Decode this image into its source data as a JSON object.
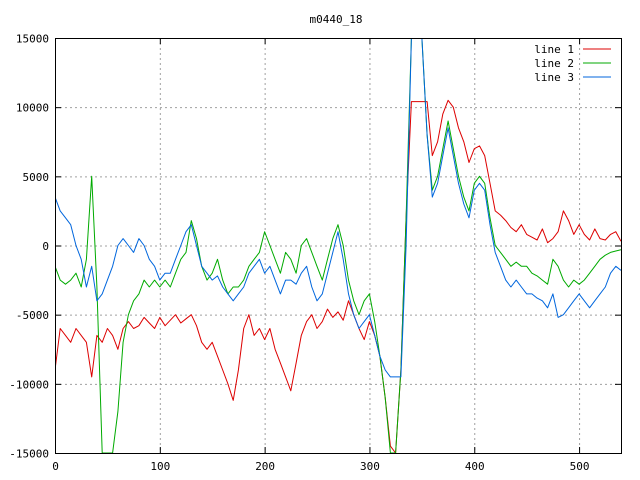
{
  "chart_data": {
    "type": "line",
    "title": "m0440_18",
    "xlabel": "",
    "ylabel": "",
    "xlim": [
      0,
      540
    ],
    "ylim": [
      -15000,
      15000
    ],
    "grid": true,
    "legend_position": "top-right",
    "x_ticks": [
      0,
      100,
      200,
      300,
      400,
      500
    ],
    "y_ticks": [
      -15000,
      -10000,
      -5000,
      0,
      5000,
      10000,
      15000
    ],
    "x_tick_labels": [
      "0",
      "100",
      "200",
      "300",
      "400",
      "500"
    ],
    "y_tick_labels": [
      "-15000",
      "-10000",
      "-5000",
      "0",
      "5000",
      "10000",
      "15000"
    ],
    "series": [
      {
        "name": "line 1",
        "color": "#dd0000",
        "x": [
          0,
          5,
          10,
          15,
          20,
          25,
          30,
          35,
          40,
          45,
          50,
          55,
          60,
          65,
          70,
          75,
          80,
          85,
          90,
          95,
          100,
          105,
          110,
          115,
          120,
          125,
          130,
          135,
          140,
          145,
          150,
          155,
          160,
          165,
          170,
          175,
          180,
          185,
          190,
          195,
          200,
          205,
          210,
          215,
          220,
          225,
          230,
          235,
          240,
          245,
          250,
          255,
          260,
          265,
          270,
          275,
          280,
          285,
          290,
          295,
          300,
          305,
          310,
          315,
          320,
          325,
          330,
          335,
          340,
          345,
          350,
          355,
          360,
          365,
          370,
          375,
          380,
          385,
          390,
          395,
          400,
          405,
          410,
          415,
          420,
          425,
          430,
          435,
          440,
          445,
          450,
          455,
          460,
          465,
          470,
          475,
          480,
          485,
          490,
          495,
          500,
          505,
          510,
          515,
          520,
          525,
          530,
          535,
          540
        ],
        "values": [
          -9000,
          -6000,
          -6500,
          -7000,
          -6000,
          -6500,
          -7000,
          -9500,
          -6500,
          -7000,
          -6000,
          -6500,
          -7500,
          -6000,
          -5500,
          -6000,
          -5800,
          -5200,
          -5600,
          -6000,
          -5200,
          -5800,
          -5400,
          -5000,
          -5600,
          -5300,
          -5000,
          -5800,
          -7000,
          -7500,
          -7000,
          -8000,
          -9000,
          -10000,
          -11200,
          -9000,
          -6000,
          -5000,
          -6500,
          -6000,
          -6800,
          -6000,
          -7500,
          -8500,
          -9500,
          -10500,
          -8500,
          -6500,
          -5500,
          -5000,
          -6000,
          -5500,
          -4600,
          -5200,
          -4800,
          -5400,
          -4000,
          -5000,
          -6000,
          -6800,
          -5500,
          -6500,
          -8000,
          -11000,
          -14500,
          -15000,
          -9000,
          2000,
          10400,
          10400,
          10400,
          10400,
          6500,
          7500,
          9500,
          10500,
          10000,
          8500,
          7500,
          6000,
          7000,
          7200,
          6500,
          4500,
          2500,
          2200,
          1800,
          1300,
          1000,
          1500,
          800,
          600,
          400,
          1200,
          200,
          500,
          1000,
          2500,
          1800,
          800,
          1500,
          800,
          400,
          1200,
          500,
          400,
          800,
          1000,
          300
        ]
      },
      {
        "name": "line 2",
        "color": "#00aa00",
        "x": [
          0,
          5,
          10,
          15,
          20,
          25,
          30,
          35,
          40,
          45,
          50,
          55,
          60,
          65,
          70,
          75,
          80,
          85,
          90,
          95,
          100,
          105,
          110,
          115,
          120,
          125,
          130,
          135,
          140,
          145,
          150,
          155,
          160,
          165,
          170,
          175,
          180,
          185,
          190,
          195,
          200,
          205,
          210,
          215,
          220,
          225,
          230,
          235,
          240,
          245,
          250,
          255,
          260,
          265,
          270,
          275,
          280,
          285,
          290,
          295,
          300,
          305,
          310,
          315,
          320,
          325,
          330,
          335,
          340,
          345,
          350,
          355,
          360,
          365,
          370,
          375,
          380,
          385,
          390,
          395,
          400,
          405,
          410,
          415,
          420,
          425,
          430,
          435,
          440,
          445,
          450,
          455,
          460,
          465,
          470,
          475,
          480,
          485,
          490,
          495,
          500,
          505,
          510,
          515,
          520,
          525,
          530,
          535,
          540
        ],
        "values": [
          -1500,
          -2500,
          -2800,
          -2500,
          -2000,
          -3000,
          -1000,
          5000,
          -3000,
          -15000,
          -15000,
          -15000,
          -12000,
          -7000,
          -5000,
          -4000,
          -3500,
          -2500,
          -3000,
          -2500,
          -3000,
          -2500,
          -3000,
          -2000,
          -1000,
          -500,
          1800,
          500,
          -1500,
          -2500,
          -2000,
          -1000,
          -2500,
          -3500,
          -3000,
          -3000,
          -2500,
          -1500,
          -1000,
          -500,
          1000,
          0,
          -1000,
          -2000,
          -500,
          -1000,
          -2000,
          0,
          500,
          -500,
          -1500,
          -2500,
          -1000,
          500,
          1500,
          0,
          -2500,
          -4000,
          -5000,
          -4000,
          -3500,
          -5500,
          -8000,
          -11000,
          -15000,
          -15000,
          -9000,
          2000,
          15000,
          15000,
          15000,
          8000,
          4000,
          5000,
          7000,
          9000,
          7000,
          5000,
          3500,
          2500,
          4500,
          5000,
          4500,
          2000,
          0,
          -500,
          -1000,
          -1500,
          -1200,
          -1500,
          -1500,
          -2000,
          -2200,
          -2500,
          -2800,
          -1000,
          -1500,
          -2500,
          -3000,
          -2500,
          -2800,
          -2500,
          -2000,
          -1500,
          -1000,
          -700,
          -500,
          -400,
          -300
        ]
      },
      {
        "name": "line 3",
        "color": "#0066dd",
        "x": [
          0,
          5,
          10,
          15,
          20,
          25,
          30,
          35,
          40,
          45,
          50,
          55,
          60,
          65,
          70,
          75,
          80,
          85,
          90,
          95,
          100,
          105,
          110,
          115,
          120,
          125,
          130,
          135,
          140,
          145,
          150,
          155,
          160,
          165,
          170,
          175,
          180,
          185,
          190,
          195,
          200,
          205,
          210,
          215,
          220,
          225,
          230,
          235,
          240,
          245,
          250,
          255,
          260,
          265,
          270,
          275,
          280,
          285,
          290,
          295,
          300,
          305,
          310,
          315,
          320,
          325,
          330,
          335,
          340,
          345,
          350,
          355,
          360,
          365,
          370,
          375,
          380,
          385,
          390,
          395,
          400,
          405,
          410,
          415,
          420,
          425,
          430,
          435,
          440,
          445,
          450,
          455,
          460,
          465,
          470,
          475,
          480,
          485,
          490,
          495,
          500,
          505,
          510,
          515,
          520,
          525,
          530,
          535,
          540
        ],
        "values": [
          3500,
          2500,
          2000,
          1500,
          0,
          -1000,
          -3000,
          -1500,
          -4000,
          -3500,
          -2500,
          -1500,
          0,
          500,
          0,
          -500,
          500,
          0,
          -1000,
          -1500,
          -2500,
          -2000,
          -2000,
          -1000,
          0,
          1000,
          1500,
          0,
          -1500,
          -2000,
          -2500,
          -2200,
          -3000,
          -3500,
          -4000,
          -3500,
          -3000,
          -2000,
          -1500,
          -1000,
          -2000,
          -1500,
          -2500,
          -3500,
          -2500,
          -2500,
          -2800,
          -2000,
          -1500,
          -3000,
          -4000,
          -3500,
          -2000,
          -500,
          1000,
          -1000,
          -3500,
          -5000,
          -6000,
          -5500,
          -5000,
          -6500,
          -8000,
          -9000,
          -9500,
          -9500,
          -9500,
          0,
          15000,
          15000,
          15000,
          8000,
          3500,
          4500,
          6500,
          8500,
          6500,
          4500,
          3000,
          2000,
          4000,
          4500,
          4000,
          1500,
          -500,
          -1500,
          -2500,
          -3000,
          -2500,
          -3000,
          -3500,
          -3500,
          -3800,
          -4000,
          -4500,
          -3500,
          -5200,
          -5000,
          -4500,
          -4000,
          -3500,
          -4000,
          -4500,
          -4000,
          -3500,
          -3000,
          -2000,
          -1500,
          -1800
        ]
      }
    ]
  }
}
